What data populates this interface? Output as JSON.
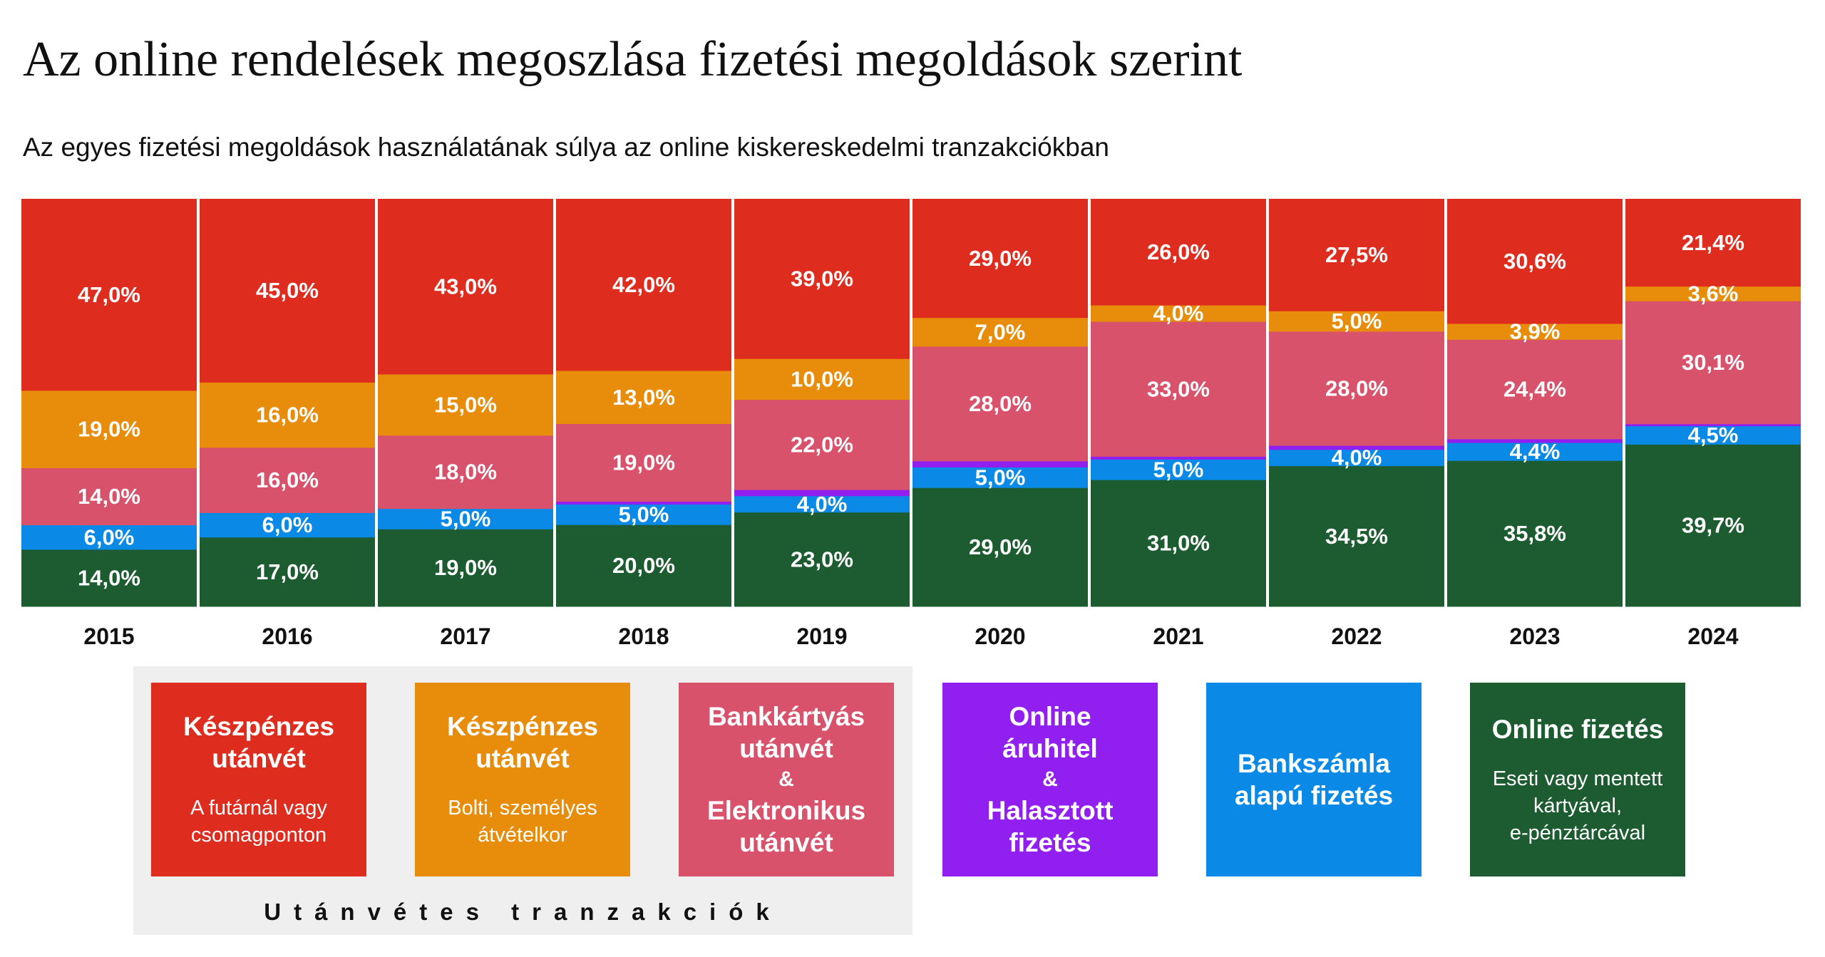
{
  "title": "Az online rendelések megoszlása fizetési megoldások szerint",
  "subtitle": "Az egyes fizetési megoldások használatának súlya az online kiskereskedelmi tranzakciókban",
  "colors": {
    "cash_courier": "#de2d1f",
    "cash_pickup": "#e88c0c",
    "card_electronic": "#d9526b",
    "online_credit": "#9120f0",
    "bank_account": "#0a8ae6",
    "online_payment": "#1d5b31"
  },
  "chart_data": {
    "type": "bar",
    "stacked": true,
    "normalized": true,
    "categories": [
      "2015",
      "2016",
      "2017",
      "2018",
      "2019",
      "2020",
      "2021",
      "2022",
      "2023",
      "2024"
    ],
    "series": [
      {
        "key": "online_payment",
        "color": "#1d5b31",
        "values": [
          14.0,
          17.0,
          19.0,
          20.0,
          23.0,
          29.0,
          31.0,
          34.5,
          35.8,
          39.7
        ],
        "labels": [
          "14,0%",
          "17,0%",
          "19,0%",
          "20,0%",
          "23,0%",
          "29,0%",
          "31,0%",
          "34,5%",
          "35,8%",
          "39,7%"
        ]
      },
      {
        "key": "bank_account",
        "color": "#0a8ae6",
        "values": [
          6.0,
          6.0,
          5.0,
          5.0,
          4.0,
          5.0,
          5.0,
          4.0,
          4.4,
          4.5
        ],
        "labels": [
          "6,0%",
          "6,0%",
          "5,0%",
          "5,0%",
          "4,0%",
          "5,0%",
          "5,0%",
          "4,0%",
          "4,4%",
          "4,5%"
        ]
      },
      {
        "key": "online_credit",
        "color": "#9120f0",
        "values": [
          0,
          0,
          0,
          0.7,
          1.5,
          1.5,
          0.7,
          1.0,
          0.9,
          0.5
        ],
        "labels": [
          "",
          "",
          "",
          "",
          "",
          "",
          "",
          "",
          "",
          ""
        ]
      },
      {
        "key": "card_electronic",
        "color": "#d9526b",
        "values": [
          14.0,
          16.0,
          18.0,
          19.0,
          22.0,
          28.0,
          33.0,
          28.0,
          24.4,
          30.1
        ],
        "labels": [
          "14,0%",
          "16,0%",
          "18,0%",
          "19,0%",
          "22,0%",
          "28,0%",
          "33,0%",
          "28,0%",
          "24,4%",
          "30,1%"
        ]
      },
      {
        "key": "cash_pickup",
        "color": "#e88c0c",
        "values": [
          19.0,
          16.0,
          15.0,
          13.0,
          10.0,
          7.0,
          4.0,
          5.0,
          3.9,
          3.6
        ],
        "labels": [
          "19,0%",
          "16,0%",
          "15,0%",
          "13,0%",
          "10,0%",
          "7,0%",
          "4,0%",
          "5,0%",
          "3,9%",
          "3,6%"
        ]
      },
      {
        "key": "cash_courier",
        "color": "#de2d1f",
        "values": [
          47.0,
          45.0,
          43.0,
          42.0,
          39.0,
          29.0,
          26.0,
          27.5,
          30.6,
          21.4
        ],
        "labels": [
          "47,0%",
          "45,0%",
          "43,0%",
          "42,0%",
          "39,0%",
          "29,0%",
          "26,0%",
          "27,5%",
          "30,6%",
          "21,4%"
        ]
      }
    ]
  },
  "legend": {
    "group_caption": "Utánvétes tranzakciók",
    "items": [
      {
        "key": "cash_courier",
        "color": "#de2d1f",
        "title": "Készpénzes\nutánvét",
        "subtitle": "A futárnál vagy\ncsomagponton"
      },
      {
        "key": "cash_pickup",
        "color": "#e88c0c",
        "title": "Készpénzes\nutánvét",
        "subtitle": "Bolti, személyes\nátvételkor"
      },
      {
        "key": "card_electronic",
        "color": "#d9526b",
        "title": "Bankkártyás\nutánvét",
        "amp": "&",
        "title2": "Elektronikus\nutánvét"
      },
      {
        "key": "online_credit",
        "color": "#9120f0",
        "title": "Online\náruhitel",
        "amp": "&",
        "title2": "Halasztott\nfizetés"
      },
      {
        "key": "bank_account",
        "color": "#0a8ae6",
        "title": "Bankszámla\nalapú fizetés"
      },
      {
        "key": "online_payment",
        "color": "#1d5b31",
        "title": "Online fizetés",
        "subtitle": "Eseti vagy mentett\nkártyával,\ne-pénztárcával"
      }
    ]
  }
}
